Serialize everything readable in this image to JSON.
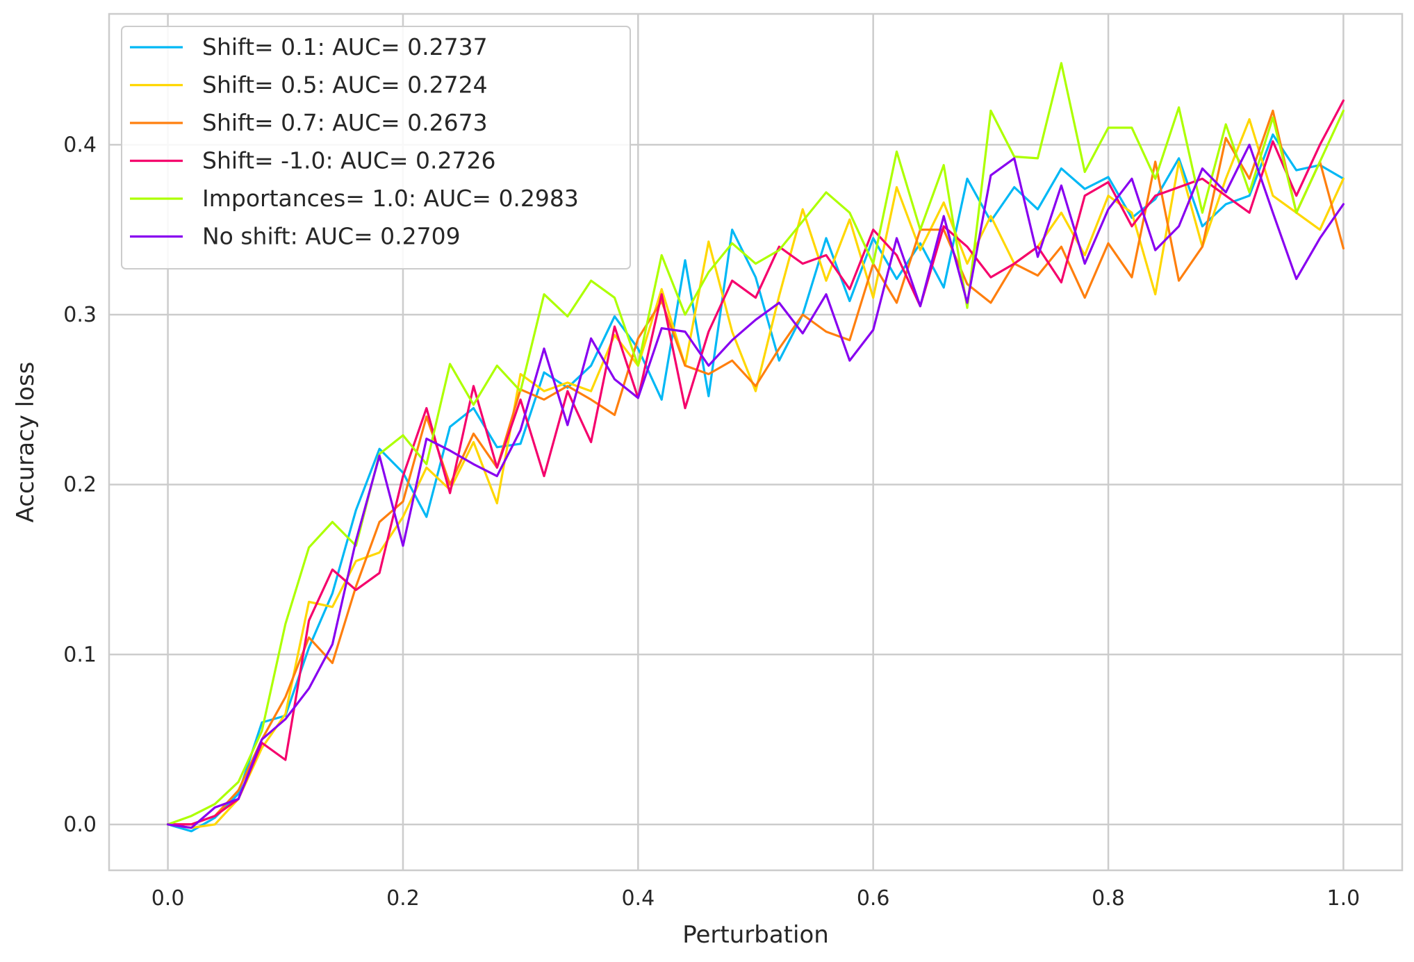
{
  "chart_data": {
    "type": "line",
    "title": "",
    "xlabel": "Perturbation",
    "ylabel": "Accuracy loss",
    "xlim": [
      -0.05,
      1.05
    ],
    "ylim": [
      -0.027,
      0.477
    ],
    "xticks": [
      0.0,
      0.2,
      0.4,
      0.6,
      0.8,
      1.0
    ],
    "xtick_labels": [
      "0.0",
      "0.2",
      "0.4",
      "0.6",
      "0.8",
      "1.0"
    ],
    "yticks": [
      0.0,
      0.1,
      0.2,
      0.3,
      0.4
    ],
    "ytick_labels": [
      "0.0",
      "0.1",
      "0.2",
      "0.3",
      "0.4"
    ],
    "grid": true,
    "legend_position": "top-left",
    "x": [
      0.0,
      0.02,
      0.04,
      0.06,
      0.08,
      0.1,
      0.12,
      0.14,
      0.16,
      0.18,
      0.2,
      0.22,
      0.24,
      0.26,
      0.28,
      0.3,
      0.32,
      0.34,
      0.36,
      0.38,
      0.4,
      0.42,
      0.44,
      0.46,
      0.48,
      0.5,
      0.52,
      0.54,
      0.56,
      0.58,
      0.6,
      0.62,
      0.64,
      0.66,
      0.68,
      0.7,
      0.72,
      0.74,
      0.76,
      0.78,
      0.8,
      0.82,
      0.84,
      0.86,
      0.88,
      0.9,
      0.92,
      0.94,
      0.96,
      0.98,
      1.0
    ],
    "series": [
      {
        "name": "Shift= 0.1: AUC= 0.2737",
        "color": "#00b8f5",
        "values": [
          0.0,
          -0.004,
          0.004,
          0.018,
          0.06,
          0.064,
          0.104,
          0.136,
          0.185,
          0.221,
          0.207,
          0.181,
          0.234,
          0.245,
          0.222,
          0.224,
          0.266,
          0.257,
          0.27,
          0.299,
          0.28,
          0.25,
          0.332,
          0.252,
          0.35,
          0.322,
          0.273,
          0.3,
          0.345,
          0.308,
          0.345,
          0.321,
          0.342,
          0.316,
          0.38,
          0.355,
          0.375,
          0.362,
          0.386,
          0.374,
          0.381,
          0.357,
          0.368,
          0.392,
          0.352,
          0.365,
          0.37,
          0.406,
          0.385,
          0.388,
          0.38
        ]
      },
      {
        "name": "Shift= 0.5: AUC= 0.2724",
        "color": "#ffd700",
        "values": [
          0.0,
          -0.002,
          0.0,
          0.015,
          0.045,
          0.065,
          0.131,
          0.128,
          0.155,
          0.16,
          0.181,
          0.21,
          0.197,
          0.225,
          0.189,
          0.265,
          0.255,
          0.26,
          0.255,
          0.288,
          0.27,
          0.315,
          0.27,
          0.343,
          0.29,
          0.255,
          0.311,
          0.362,
          0.32,
          0.356,
          0.31,
          0.375,
          0.338,
          0.366,
          0.33,
          0.358,
          0.33,
          0.34,
          0.36,
          0.335,
          0.37,
          0.36,
          0.312,
          0.39,
          0.34,
          0.38,
          0.415,
          0.37,
          0.36,
          0.35,
          0.38
        ]
      },
      {
        "name": "Shift= 0.7: AUC= 0.2673",
        "color": "#ff7f0e",
        "values": [
          0.0,
          0.0,
          0.005,
          0.02,
          0.05,
          0.075,
          0.11,
          0.095,
          0.14,
          0.178,
          0.19,
          0.24,
          0.2,
          0.23,
          0.21,
          0.256,
          0.25,
          0.258,
          0.25,
          0.241,
          0.286,
          0.308,
          0.27,
          0.265,
          0.273,
          0.258,
          0.28,
          0.3,
          0.29,
          0.285,
          0.33,
          0.307,
          0.35,
          0.35,
          0.318,
          0.307,
          0.33,
          0.323,
          0.34,
          0.31,
          0.342,
          0.322,
          0.39,
          0.32,
          0.34,
          0.404,
          0.38,
          0.42,
          0.36,
          0.39,
          0.339
        ]
      },
      {
        "name": "Shift= -1.0: AUC= 0.2726",
        "color": "#f5006c",
        "values": [
          0.0,
          0.0,
          0.005,
          0.015,
          0.048,
          0.038,
          0.12,
          0.15,
          0.138,
          0.148,
          0.205,
          0.245,
          0.195,
          0.258,
          0.21,
          0.25,
          0.205,
          0.255,
          0.225,
          0.293,
          0.251,
          0.312,
          0.245,
          0.29,
          0.32,
          0.31,
          0.34,
          0.33,
          0.335,
          0.315,
          0.35,
          0.335,
          0.305,
          0.352,
          0.34,
          0.322,
          0.33,
          0.34,
          0.319,
          0.37,
          0.378,
          0.352,
          0.37,
          0.375,
          0.38,
          0.37,
          0.36,
          0.402,
          0.37,
          0.4,
          0.426
        ]
      },
      {
        "name": "Importances= 1.0: AUC= 0.2983",
        "color": "#adff00",
        "values": [
          0.0,
          0.005,
          0.012,
          0.025,
          0.055,
          0.118,
          0.163,
          0.178,
          0.164,
          0.218,
          0.229,
          0.212,
          0.271,
          0.247,
          0.27,
          0.255,
          0.312,
          0.299,
          0.32,
          0.31,
          0.27,
          0.335,
          0.3,
          0.325,
          0.342,
          0.33,
          0.338,
          0.355,
          0.372,
          0.36,
          0.33,
          0.396,
          0.35,
          0.388,
          0.304,
          0.42,
          0.393,
          0.392,
          0.448,
          0.384,
          0.41,
          0.41,
          0.38,
          0.422,
          0.36,
          0.412,
          0.372,
          0.416,
          0.36,
          0.39,
          0.42
        ]
      },
      {
        "name": "No shift: AUC= 0.2709",
        "color": "#8800f0",
        "values": [
          0.0,
          -0.002,
          0.01,
          0.015,
          0.05,
          0.062,
          0.08,
          0.106,
          0.167,
          0.217,
          0.164,
          0.227,
          0.22,
          0.212,
          0.205,
          0.232,
          0.28,
          0.235,
          0.286,
          0.262,
          0.251,
          0.292,
          0.29,
          0.27,
          0.285,
          0.297,
          0.307,
          0.289,
          0.312,
          0.273,
          0.291,
          0.345,
          0.305,
          0.358,
          0.307,
          0.382,
          0.392,
          0.334,
          0.376,
          0.33,
          0.362,
          0.38,
          0.338,
          0.352,
          0.386,
          0.372,
          0.4,
          0.36,
          0.321,
          0.345,
          0.365
        ]
      }
    ]
  }
}
